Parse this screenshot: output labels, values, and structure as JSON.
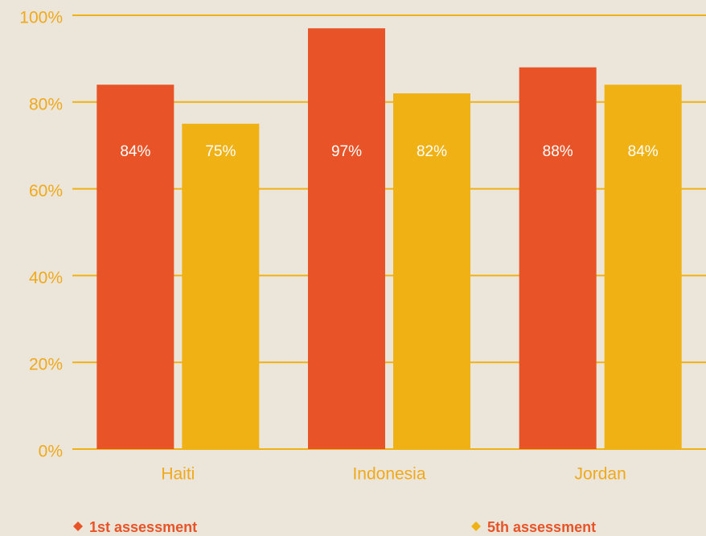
{
  "chart_data": {
    "type": "bar",
    "categories": [
      "Haiti",
      "Indonesia",
      "Jordan"
    ],
    "series": [
      {
        "name": "1st assessment",
        "color": "#e85427",
        "values": [
          84,
          97,
          88
        ],
        "value_labels": [
          "84%",
          "97%",
          "88%"
        ]
      },
      {
        "name": "5th assessment",
        "color": "#f0b114",
        "values": [
          75,
          82,
          84
        ],
        "value_labels": [
          "75%",
          "82%",
          "84%"
        ]
      }
    ],
    "ylim": [
      0,
      100
    ],
    "yticks": [
      {
        "value": 0,
        "label": "0%"
      },
      {
        "value": 20,
        "label": "20%"
      },
      {
        "value": 40,
        "label": "40%"
      },
      {
        "value": 60,
        "label": "60%"
      },
      {
        "value": 80,
        "label": "80%"
      },
      {
        "value": 100,
        "label": "100%"
      }
    ],
    "grid": true,
    "grid_color": "#f0b114"
  }
}
